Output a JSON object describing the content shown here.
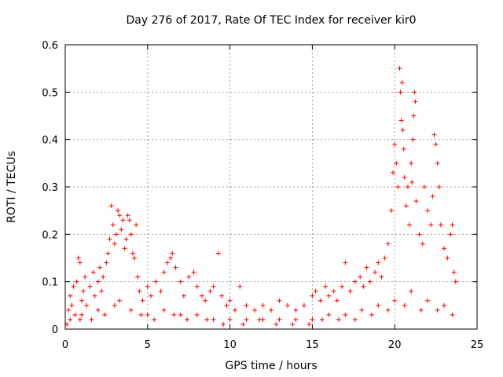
{
  "chart_data": {
    "type": "scatter",
    "title": "Day 276 of 2017, Rate Of TEC Index for receiver kir0",
    "xlabel": "GPS time / hours",
    "ylabel": "ROTI / TECUs",
    "xlim": [
      0,
      25
    ],
    "ylim": [
      0,
      0.6
    ],
    "xticks": [
      0,
      5,
      10,
      15,
      20,
      25
    ],
    "xtick_labels": [
      "0",
      "5",
      "10",
      "15",
      "20",
      "25"
    ],
    "yticks": [
      0,
      0.1,
      0.2,
      0.3,
      0.4,
      0.5,
      0.6
    ],
    "ytick_labels": [
      "0",
      "0.1",
      "0.2",
      "0.3",
      "0.4",
      "0.5",
      "0.6"
    ],
    "grid": true,
    "marker": "+",
    "color": "#ff0000",
    "series": [
      {
        "name": "ROTI",
        "points": [
          [
            0.2,
            0.04
          ],
          [
            0.3,
            0.07
          ],
          [
            0.4,
            0.05
          ],
          [
            0.5,
            0.09
          ],
          [
            0.6,
            0.03
          ],
          [
            0.7,
            0.1
          ],
          [
            0.8,
            0.15
          ],
          [
            0.9,
            0.14
          ],
          [
            1.0,
            0.06
          ],
          [
            1.1,
            0.08
          ],
          [
            1.2,
            0.11
          ],
          [
            1.3,
            0.05
          ],
          [
            1.5,
            0.09
          ],
          [
            1.7,
            0.12
          ],
          [
            1.8,
            0.07
          ],
          [
            2.0,
            0.1
          ],
          [
            2.1,
            0.13
          ],
          [
            2.2,
            0.08
          ],
          [
            2.3,
            0.11
          ],
          [
            2.5,
            0.14
          ],
          [
            2.6,
            0.16
          ],
          [
            2.7,
            0.19
          ],
          [
            2.8,
            0.26
          ],
          [
            2.9,
            0.22
          ],
          [
            3.0,
            0.18
          ],
          [
            3.1,
            0.2
          ],
          [
            3.2,
            0.25
          ],
          [
            3.3,
            0.24
          ],
          [
            3.4,
            0.21
          ],
          [
            3.5,
            0.23
          ],
          [
            3.6,
            0.17
          ],
          [
            3.7,
            0.19
          ],
          [
            3.8,
            0.24
          ],
          [
            3.9,
            0.23
          ],
          [
            4.0,
            0.2
          ],
          [
            4.1,
            0.16
          ],
          [
            4.2,
            0.15
          ],
          [
            4.3,
            0.22
          ],
          [
            4.4,
            0.11
          ],
          [
            4.5,
            0.08
          ],
          [
            4.7,
            0.06
          ],
          [
            5.0,
            0.09
          ],
          [
            5.2,
            0.07
          ],
          [
            5.5,
            0.1
          ],
          [
            5.8,
            0.08
          ],
          [
            6.0,
            0.12
          ],
          [
            6.2,
            0.14
          ],
          [
            6.4,
            0.15
          ],
          [
            6.5,
            0.16
          ],
          [
            6.7,
            0.13
          ],
          [
            7.0,
            0.1
          ],
          [
            7.2,
            0.07
          ],
          [
            7.5,
            0.11
          ],
          [
            7.8,
            0.12
          ],
          [
            8.0,
            0.09
          ],
          [
            8.3,
            0.07
          ],
          [
            8.5,
            0.06
          ],
          [
            8.8,
            0.08
          ],
          [
            9.0,
            0.09
          ],
          [
            9.3,
            0.16
          ],
          [
            9.5,
            0.07
          ],
          [
            9.8,
            0.05
          ],
          [
            10.0,
            0.06
          ],
          [
            10.3,
            0.04
          ],
          [
            10.6,
            0.09
          ],
          [
            11.0,
            0.05
          ],
          [
            11.5,
            0.04
          ],
          [
            12.0,
            0.05
          ],
          [
            12.5,
            0.04
          ],
          [
            13.0,
            0.06
          ],
          [
            13.5,
            0.05
          ],
          [
            14.0,
            0.04
          ],
          [
            14.5,
            0.05
          ],
          [
            15.0,
            0.07
          ],
          [
            15.2,
            0.08
          ],
          [
            15.5,
            0.06
          ],
          [
            15.8,
            0.09
          ],
          [
            16.0,
            0.07
          ],
          [
            16.3,
            0.08
          ],
          [
            16.5,
            0.06
          ],
          [
            16.8,
            0.09
          ],
          [
            17.0,
            0.14
          ],
          [
            17.3,
            0.08
          ],
          [
            17.6,
            0.1
          ],
          [
            17.9,
            0.11
          ],
          [
            18.1,
            0.09
          ],
          [
            18.3,
            0.13
          ],
          [
            18.5,
            0.1
          ],
          [
            18.8,
            0.12
          ],
          [
            19.0,
            0.14
          ],
          [
            19.2,
            0.11
          ],
          [
            19.4,
            0.15
          ],
          [
            19.6,
            0.18
          ],
          [
            19.8,
            0.25
          ],
          [
            19.9,
            0.33
          ],
          [
            20.0,
            0.39
          ],
          [
            20.1,
            0.35
          ],
          [
            20.2,
            0.3
          ],
          [
            20.3,
            0.55
          ],
          [
            20.35,
            0.5
          ],
          [
            20.4,
            0.44
          ],
          [
            20.45,
            0.52
          ],
          [
            20.5,
            0.42
          ],
          [
            20.55,
            0.38
          ],
          [
            20.6,
            0.32
          ],
          [
            20.7,
            0.26
          ],
          [
            20.8,
            0.3
          ],
          [
            20.9,
            0.22
          ],
          [
            21.0,
            0.35
          ],
          [
            21.05,
            0.31
          ],
          [
            21.1,
            0.4
          ],
          [
            21.15,
            0.45
          ],
          [
            21.2,
            0.5
          ],
          [
            21.25,
            0.48
          ],
          [
            21.3,
            0.27
          ],
          [
            21.5,
            0.2
          ],
          [
            21.7,
            0.18
          ],
          [
            21.8,
            0.3
          ],
          [
            22.0,
            0.25
          ],
          [
            22.2,
            0.22
          ],
          [
            22.3,
            0.28
          ],
          [
            22.4,
            0.41
          ],
          [
            22.5,
            0.39
          ],
          [
            22.6,
            0.35
          ],
          [
            22.7,
            0.3
          ],
          [
            22.8,
            0.22
          ],
          [
            23.0,
            0.17
          ],
          [
            23.2,
            0.15
          ],
          [
            23.4,
            0.2
          ],
          [
            23.5,
            0.22
          ],
          [
            23.6,
            0.12
          ],
          [
            23.7,
            0.1
          ],
          [
            0.3,
            0.02
          ],
          [
            1.0,
            0.03
          ],
          [
            2.0,
            0.04
          ],
          [
            3.0,
            0.05
          ],
          [
            4.0,
            0.04
          ],
          [
            5.0,
            0.03
          ],
          [
            6.0,
            0.04
          ],
          [
            7.0,
            0.03
          ],
          [
            8.0,
            0.03
          ],
          [
            9.0,
            0.02
          ],
          [
            10.0,
            0.02
          ],
          [
            11.0,
            0.02
          ],
          [
            12.0,
            0.02
          ],
          [
            13.0,
            0.02
          ],
          [
            14.0,
            0.02
          ],
          [
            15.0,
            0.02
          ],
          [
            16.0,
            0.03
          ],
          [
            17.0,
            0.03
          ],
          [
            18.0,
            0.04
          ],
          [
            19.0,
            0.05
          ],
          [
            20.0,
            0.06
          ],
          [
            21.0,
            0.08
          ],
          [
            22.0,
            0.06
          ],
          [
            23.0,
            0.05
          ],
          [
            0.1,
            0.01
          ],
          [
            0.9,
            0.02
          ],
          [
            1.6,
            0.02
          ],
          [
            2.4,
            0.03
          ],
          [
            3.3,
            0.06
          ],
          [
            4.6,
            0.03
          ],
          [
            5.4,
            0.02
          ],
          [
            6.6,
            0.03
          ],
          [
            7.4,
            0.02
          ],
          [
            8.6,
            0.02
          ],
          [
            9.6,
            0.01
          ],
          [
            10.8,
            0.01
          ],
          [
            11.8,
            0.02
          ],
          [
            12.8,
            0.01
          ],
          [
            13.8,
            0.01
          ],
          [
            14.8,
            0.01
          ],
          [
            15.6,
            0.02
          ],
          [
            16.6,
            0.02
          ],
          [
            17.6,
            0.02
          ],
          [
            18.6,
            0.03
          ],
          [
            19.6,
            0.04
          ],
          [
            20.6,
            0.05
          ],
          [
            21.6,
            0.04
          ],
          [
            22.6,
            0.04
          ],
          [
            23.5,
            0.03
          ]
        ]
      }
    ]
  }
}
